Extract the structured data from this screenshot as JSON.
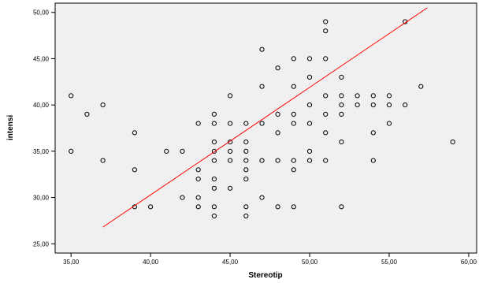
{
  "chart_data": {
    "type": "scatter",
    "title": "",
    "xlabel": "Stereotip",
    "ylabel": "intensi",
    "xlim": [
      34,
      60.5
    ],
    "ylim": [
      24,
      51
    ],
    "xticks": [
      35,
      40,
      45,
      50,
      55,
      60
    ],
    "yticks": [
      25,
      30,
      35,
      40,
      45,
      50
    ],
    "xtick_labels": [
      "35,00",
      "40,00",
      "45,00",
      "50,00",
      "55,00",
      "60,00"
    ],
    "ytick_labels": [
      "25,00",
      "30,00",
      "35,00",
      "40,00",
      "45,00",
      "50,00"
    ],
    "grid": false,
    "legend": "none",
    "colors": {
      "plot_background": "#f0f0f0",
      "marker": "#000000",
      "fit_line": "#ff0000"
    },
    "series": [
      {
        "points": [
          [
            35,
            41
          ],
          [
            35,
            35
          ],
          [
            36,
            39
          ],
          [
            37,
            40
          ],
          [
            37,
            34
          ],
          [
            39,
            37
          ],
          [
            39,
            33
          ],
          [
            39,
            29
          ],
          [
            40,
            29
          ],
          [
            41,
            35
          ],
          [
            42,
            35
          ],
          [
            42,
            30
          ],
          [
            43,
            38
          ],
          [
            43,
            33
          ],
          [
            43,
            32
          ],
          [
            43,
            30
          ],
          [
            43,
            29
          ],
          [
            44,
            39
          ],
          [
            44,
            38
          ],
          [
            44,
            36
          ],
          [
            44,
            35
          ],
          [
            44,
            34
          ],
          [
            44,
            32
          ],
          [
            44,
            31
          ],
          [
            44,
            29
          ],
          [
            44,
            28
          ],
          [
            45,
            41
          ],
          [
            45,
            38
          ],
          [
            45,
            36
          ],
          [
            45,
            35
          ],
          [
            45,
            34
          ],
          [
            45,
            31
          ],
          [
            46,
            38
          ],
          [
            46,
            36
          ],
          [
            46,
            35
          ],
          [
            46,
            34
          ],
          [
            46,
            33
          ],
          [
            46,
            32
          ],
          [
            46,
            29
          ],
          [
            46,
            28
          ],
          [
            47,
            46
          ],
          [
            47,
            42
          ],
          [
            47,
            38
          ],
          [
            47,
            34
          ],
          [
            47,
            30
          ],
          [
            48,
            44
          ],
          [
            48,
            39
          ],
          [
            48,
            37
          ],
          [
            48,
            34
          ],
          [
            48,
            29
          ],
          [
            49,
            45
          ],
          [
            49,
            42
          ],
          [
            49,
            39
          ],
          [
            49,
            38
          ],
          [
            49,
            34
          ],
          [
            49,
            33
          ],
          [
            49,
            29
          ],
          [
            50,
            45
          ],
          [
            50,
            43
          ],
          [
            50,
            40
          ],
          [
            50,
            38
          ],
          [
            50,
            35
          ],
          [
            50,
            34
          ],
          [
            51,
            49
          ],
          [
            51,
            48
          ],
          [
            51,
            45
          ],
          [
            51,
            41
          ],
          [
            51,
            39
          ],
          [
            51,
            37
          ],
          [
            51,
            34
          ],
          [
            52,
            43
          ],
          [
            52,
            41
          ],
          [
            52,
            40
          ],
          [
            52,
            39
          ],
          [
            52,
            36
          ],
          [
            52,
            29
          ],
          [
            53,
            41
          ],
          [
            53,
            40
          ],
          [
            54,
            41
          ],
          [
            54,
            40
          ],
          [
            54,
            37
          ],
          [
            54,
            34
          ],
          [
            55,
            41
          ],
          [
            55,
            40
          ],
          [
            55,
            38
          ],
          [
            56,
            49
          ],
          [
            56,
            40
          ],
          [
            57,
            42
          ],
          [
            59,
            36
          ]
        ]
      }
    ],
    "fit_line": {
      "x": [
        37,
        57.4
      ],
      "y": [
        26.8,
        50.5
      ]
    }
  }
}
